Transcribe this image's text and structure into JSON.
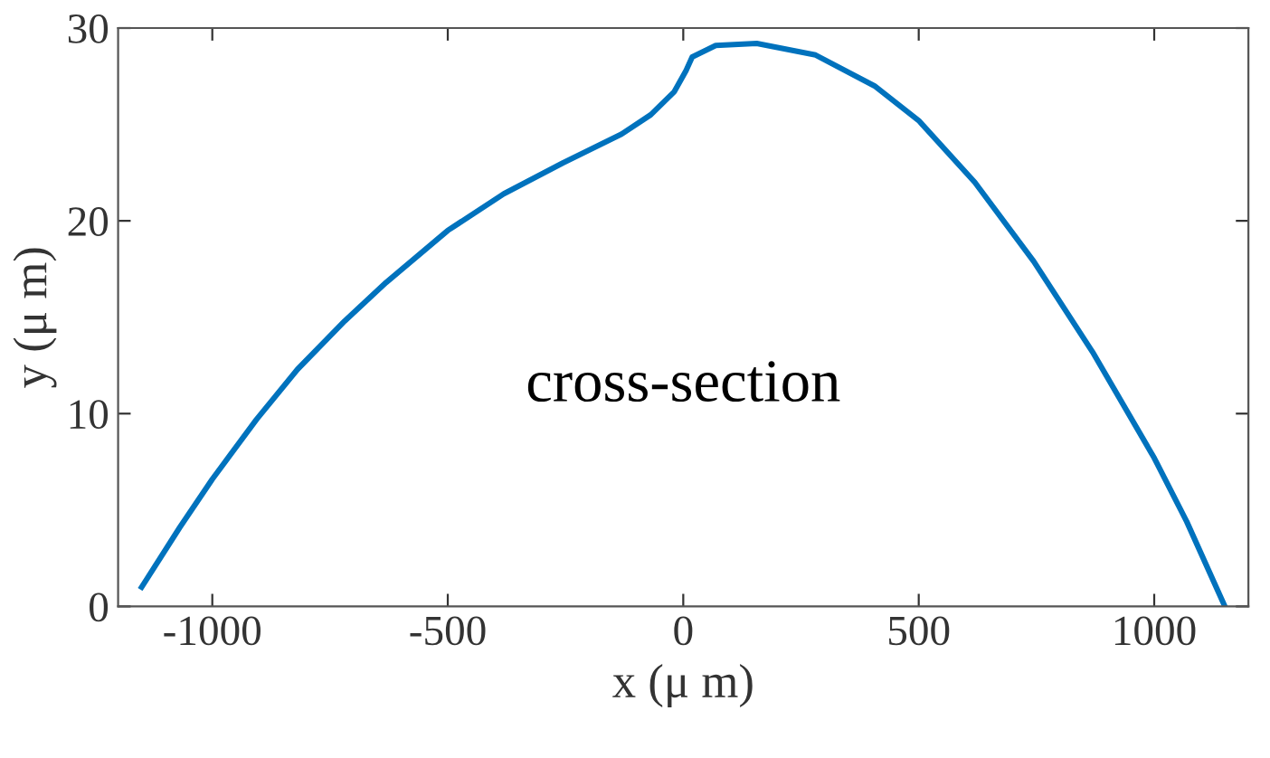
{
  "chart_data": {
    "type": "line",
    "xlabel": "x (μ m)",
    "ylabel": "y (μ m)",
    "annotations": [
      "cross-section"
    ],
    "series": [
      {
        "color": "#0072bd",
        "x": [
          -1150,
          -1069,
          -1000,
          -906,
          -819,
          -719,
          -631,
          -500,
          -381,
          -256,
          -131,
          -69,
          -19,
          6,
          19,
          69,
          156,
          281,
          406,
          500,
          619,
          744,
          869,
          1000,
          1069,
          1150
        ],
        "values": [
          1.0,
          4.1,
          6.6,
          9.7,
          12.3,
          14.8,
          16.8,
          19.5,
          21.4,
          23.0,
          24.5,
          25.5,
          26.7,
          27.8,
          28.5,
          29.1,
          29.2,
          28.6,
          27.0,
          25.2,
          22.0,
          17.9,
          13.2,
          7.7,
          4.4,
          0
        ]
      }
    ],
    "xlim": [
      -1200,
      1200
    ],
    "ylim": [
      0,
      30
    ],
    "xticks": [
      -1000,
      -500,
      0,
      500,
      1000
    ],
    "yticks": [
      0,
      10,
      20,
      30
    ],
    "grid": false,
    "legend": false,
    "marker": "none",
    "line_style": "solid"
  }
}
